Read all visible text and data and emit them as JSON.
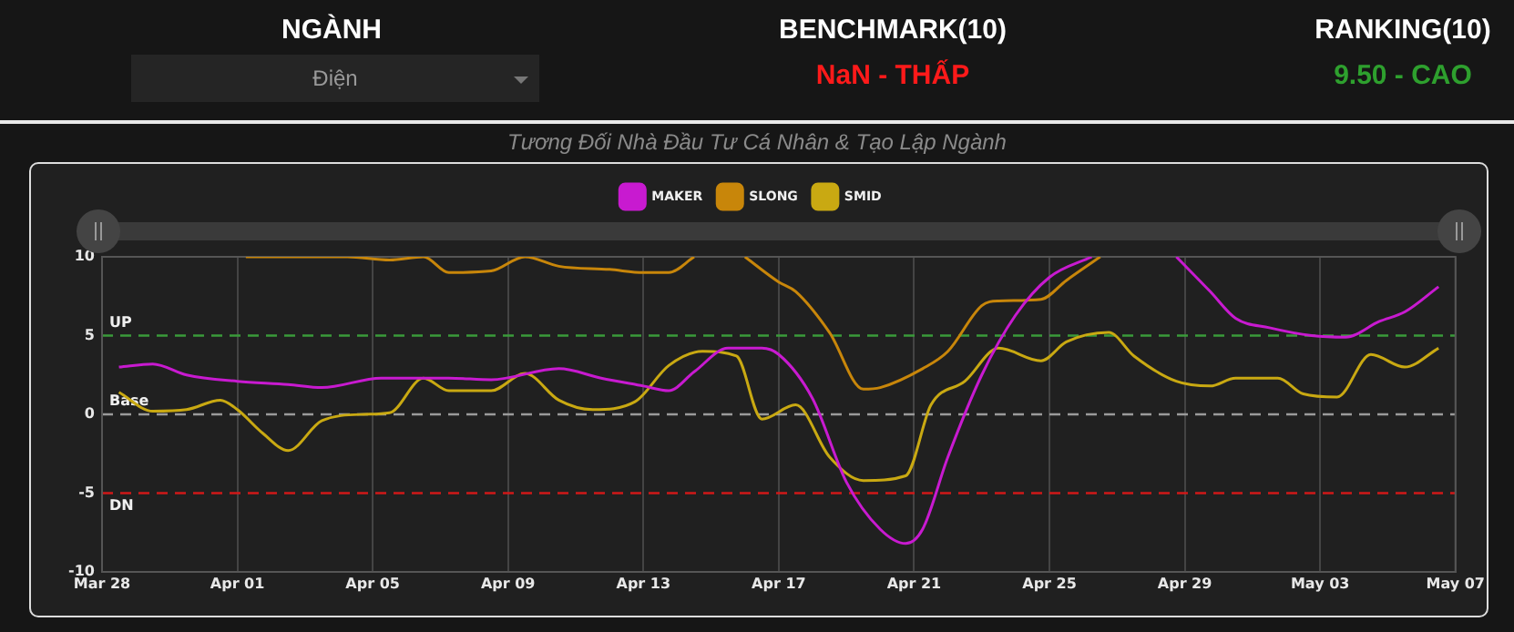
{
  "chart_data": {
    "type": "line",
    "title": "Tương Đối Nhà Đầu Tư Cá Nhân & Tạo Lập Ngành",
    "annotations": [
      "NGÀNH",
      "Điện",
      "BENCHMARK(10)",
      "NaN - THẤP",
      "RANKING(10)",
      "9.50 - CAO"
    ],
    "xlim": [
      "--03-28",
      "--05-07"
    ],
    "xticks": [
      {
        "value": "--03-28",
        "label": "Mar 28"
      },
      {
        "value": "--04-01",
        "label": "Apr 01"
      },
      {
        "value": "--04-05",
        "label": "Apr 05"
      },
      {
        "value": "--04-09",
        "label": "Apr 09"
      },
      {
        "value": "--04-13",
        "label": "Apr 13"
      },
      {
        "value": "--04-17",
        "label": "Apr 17"
      },
      {
        "value": "--04-21",
        "label": "Apr 21"
      },
      {
        "value": "--04-25",
        "label": "Apr 25"
      },
      {
        "value": "--04-29",
        "label": "Apr 29"
      },
      {
        "value": "--05-03",
        "label": "May 03"
      },
      {
        "value": "--05-07",
        "label": "May 07"
      }
    ],
    "ylim": [
      -10,
      10
    ],
    "yticks": [
      -10,
      -5,
      0,
      5,
      10
    ],
    "grid": "x",
    "legend": "top",
    "marker": "none",
    "line_style": "solid",
    "ref_lines": [
      {
        "axis": "y",
        "value": 5,
        "label": "UP",
        "color": "#3a9a3a",
        "line_style": "dashed"
      },
      {
        "axis": "y",
        "value": 0,
        "label": "Base",
        "color": "#9a9a9a",
        "line_style": "dashed"
      },
      {
        "axis": "y",
        "value": -5,
        "label": "DN",
        "color": "#d01818",
        "line_style": "dashed"
      }
    ],
    "series": [
      {
        "name": "MAKER",
        "color": "#c81ad0",
        "x": [
          "--03-28T12:00",
          "--03-29T12:00",
          "--03-30T12:00",
          "--04-01T00:00",
          "--04-02T12:00",
          "--04-03T12:00",
          "--04-05T06:00",
          "--04-07T06:00",
          "--04-08T12:00",
          "--04-10T12:00",
          "--04-11T18:00",
          "--04-13T00:00",
          "--04-13T18:00",
          "--04-14T12:00",
          "--04-15T12:00",
          "--04-16T12:00",
          "--04-17T00:00",
          "--04-18T00:00",
          "--04-19T00:00",
          "--04-20T00:00",
          "--04-20T18:00",
          "--04-21T06:00",
          "--04-22T00:00",
          "--04-23T00:00",
          "--04-24T00:00",
          "--04-25T00:00",
          "--04-26T06:00",
          "--04-26T18:00",
          "--04-28T18:00",
          "--04-29T18:00",
          "--04-30T12:00",
          "--05-01T12:00",
          "--05-02T18:00",
          "--05-03T18:00",
          "--05-04T18:00",
          "--05-05T12:00",
          "--05-06T12:00"
        ],
        "values": [
          3.0,
          3.2,
          2.5,
          2.1,
          1.9,
          1.7,
          2.3,
          2.3,
          2.2,
          2.9,
          2.3,
          1.8,
          1.5,
          2.7,
          4.2,
          4.2,
          3.8,
          1.0,
          -4.3,
          -7.3,
          -8.2,
          -7.3,
          -2.7,
          2.5,
          6.3,
          8.7,
          10,
          null,
          10,
          7.8,
          6.1,
          5.5,
          5.0,
          4.9,
          5.9,
          6.5,
          8.1
        ]
      },
      {
        "name": "SLONG",
        "color": "#c8860a",
        "x": [
          "--04-01T06:00",
          "--04-02T18:00",
          "--04-04T06:00",
          "--04-05T12:00",
          "--04-06T12:00",
          "--04-07T06:00",
          "--04-08T12:00",
          "--04-09T12:00",
          "--04-10T12:00",
          "--04-12T00:00",
          "--04-13T00:00",
          "--04-13T18:00",
          "--04-14T12:00",
          "--04-15T06:00",
          "--04-16T00:00",
          "--04-17T00:00",
          "--04-17T12:00",
          "--04-18T12:00",
          "--04-19T12:00",
          "--04-20T00:00",
          "--04-21T06:00",
          "--04-22T00:00",
          "--04-23T00:00",
          "--04-23T12:00",
          "--04-24T18:00",
          "--04-25T12:00",
          "--04-26T12:00"
        ],
        "values": [
          10,
          10,
          10,
          9.8,
          10,
          9.0,
          9.1,
          10,
          9.4,
          9.2,
          9.0,
          9.0,
          10,
          null,
          10,
          8.4,
          7.8,
          5.2,
          1.6,
          1.7,
          2.9,
          4.0,
          6.9,
          7.2,
          7.3,
          8.5,
          10
        ]
      },
      {
        "name": "SMID",
        "color": "#c9a912",
        "x": [
          "--03-28T12:00",
          "--03-29T12:00",
          "--03-30T12:00",
          "--03-31T12:00",
          "--04-01T00:00",
          "--04-01T18:00",
          "--04-02T12:00",
          "--04-03T12:00",
          "--04-04T18:00",
          "--04-05T12:00",
          "--04-06T12:00",
          "--04-07T06:00",
          "--04-08T12:00",
          "--04-09T12:00",
          "--04-10T12:00",
          "--04-11T12:00",
          "--04-12T18:00",
          "--04-13T18:00",
          "--04-14T18:00",
          "--04-15T18:00",
          "--04-16T12:00",
          "--04-17T12:00",
          "--04-18T12:00",
          "--04-19T12:00",
          "--04-20T18:00",
          "--04-21T12:00",
          "--04-22T12:00",
          "--04-23T12:00",
          "--04-24T18:00",
          "--04-25T12:00",
          "--04-26T18:00",
          "--04-27T12:00",
          "--04-28T18:00",
          "--04-29T18:00",
          "--04-30T12:00",
          "--05-01T18:00",
          "--05-02T12:00",
          "--05-03T12:00",
          "--05-04T12:00",
          "--05-05T12:00",
          "--05-06T12:00"
        ],
        "values": [
          1.4,
          0.2,
          0.3,
          0.9,
          0.3,
          -1.2,
          -2.3,
          -0.4,
          0,
          0.1,
          2.3,
          1.5,
          1.5,
          2.6,
          0.9,
          0.3,
          0.8,
          3.1,
          4.0,
          3.7,
          -0.3,
          0.6,
          -2.7,
          -4.2,
          -3.9,
          0.6,
          2.1,
          4.2,
          3.4,
          4.6,
          5.2,
          3.7,
          2.1,
          1.8,
          2.3,
          2.3,
          1.3,
          1.1,
          3.8,
          3.0,
          4.2
        ]
      }
    ]
  }
}
